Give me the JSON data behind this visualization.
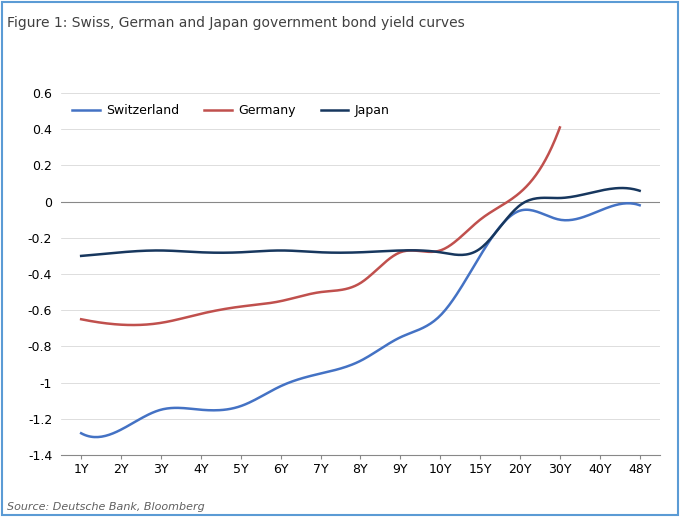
{
  "title": "Figure 1: Swiss, German and Japan government bond yield curves",
  "source": "Source: Deutsche Bank, Bloomberg",
  "x_labels": [
    "1Y",
    "2Y",
    "3Y",
    "4Y",
    "5Y",
    "6Y",
    "7Y",
    "8Y",
    "9Y",
    "10Y",
    "15Y",
    "20Y",
    "30Y",
    "40Y",
    "48Y"
  ],
  "switzerland": [
    -1.28,
    -1.26,
    -1.15,
    -1.15,
    -1.13,
    -1.02,
    -0.95,
    -0.88,
    -0.75,
    -0.63,
    -0.3,
    -0.05,
    -0.1,
    -0.05,
    -0.02
  ],
  "germany": [
    -0.65,
    -0.68,
    -0.67,
    -0.62,
    -0.58,
    -0.55,
    -0.5,
    -0.45,
    -0.28,
    -0.27,
    -0.1,
    0.05,
    0.41,
    null,
    null
  ],
  "japan": [
    -0.3,
    -0.28,
    -0.27,
    -0.28,
    -0.28,
    -0.27,
    -0.28,
    -0.28,
    -0.27,
    -0.28,
    -0.26,
    -0.02,
    0.02,
    0.06,
    0.06
  ],
  "switzerland_color": "#4472C4",
  "germany_color": "#C0504D",
  "japan_color": "#17375E",
  "ylim": [
    -1.4,
    0.6
  ],
  "yticks": [
    0.6,
    0.4,
    0.2,
    0.0,
    -0.2,
    -0.4,
    -0.6,
    -0.8,
    -1.0,
    -1.2,
    -1.4
  ],
  "ytick_labels": [
    "0.6",
    "0.4",
    "0.2",
    "0",
    "-0.2",
    "-0.4",
    "-0.6",
    "-0.8",
    "-1",
    "-1.2",
    "-1.4"
  ],
  "bg_color": "#FFFFFF",
  "border_color": "#5B9BD5",
  "title_color": "#404040",
  "title_fontsize": 10,
  "axis_fontsize": 9,
  "legend_fontsize": 9,
  "source_fontsize": 8
}
